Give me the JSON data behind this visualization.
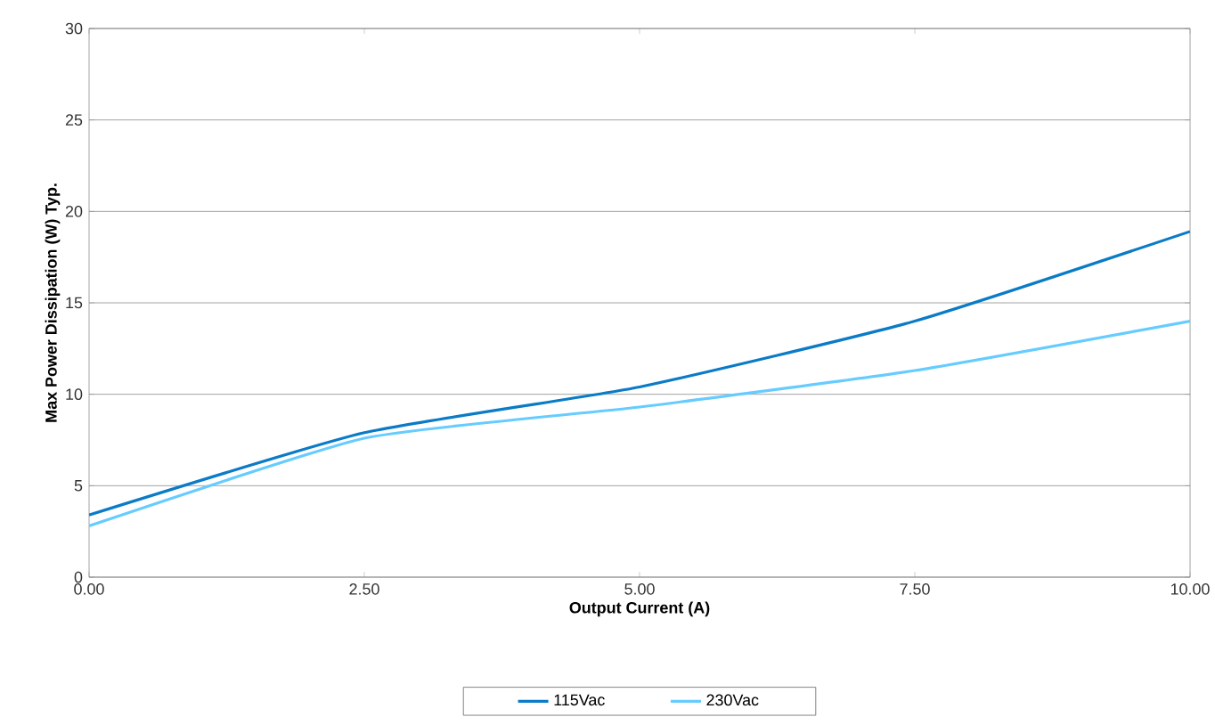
{
  "chart_data": {
    "type": "line",
    "xlabel": "Output Current (A)",
    "ylabel": "Max Power Dissipation (W) Typ.",
    "x": [
      0,
      2.5,
      5,
      7.5,
      10
    ],
    "series": [
      {
        "name": "115Vac",
        "color": "#0a7bc6",
        "values": [
          3.4,
          7.9,
          10.4,
          14.0,
          18.9
        ]
      },
      {
        "name": "230Vac",
        "color": "#66ccff",
        "values": [
          2.8,
          7.6,
          9.3,
          11.3,
          14.0
        ]
      }
    ],
    "xlim": [
      0,
      10
    ],
    "xticks": [
      {
        "value": 0,
        "label": "0.00"
      },
      {
        "value": 2.5,
        "label": "2.50"
      },
      {
        "value": 5,
        "label": "5.00"
      },
      {
        "value": 7.5,
        "label": "7.50"
      },
      {
        "value": 10,
        "label": "10.00"
      }
    ],
    "ylim": [
      0,
      30
    ],
    "yticks": [
      0,
      5,
      10,
      15,
      20,
      25,
      30
    ],
    "grid": "y",
    "legend": "bottom",
    "marker": "none",
    "line_style": "solid"
  }
}
